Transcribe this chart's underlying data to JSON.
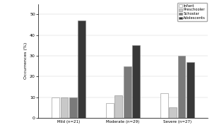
{
  "groups": [
    "Mild (n=21)",
    "Moderate (n=29)",
    "Severe (n=27)"
  ],
  "categories": [
    "Infant",
    "Preschooler",
    "Schoolar",
    "Adolescents"
  ],
  "colors": [
    "#ffffff",
    "#c8c8c8",
    "#7a7a7a",
    "#383838"
  ],
  "values": [
    [
      10,
      10,
      10,
      47
    ],
    [
      7,
      11,
      25,
      35
    ],
    [
      12,
      5,
      30,
      27
    ]
  ],
  "ylabel": "Occurrences (%)",
  "ylim": [
    0,
    55
  ],
  "yticks": [
    0,
    10,
    20,
    30,
    40,
    50
  ],
  "ytick_labels": [
    "0",
    "10",
    "20",
    "30",
    "40",
    "50"
  ],
  "bar_width": 0.045,
  "group_centers": [
    0.18,
    0.5,
    0.82
  ],
  "xlim": [
    0.0,
    1.0
  ]
}
